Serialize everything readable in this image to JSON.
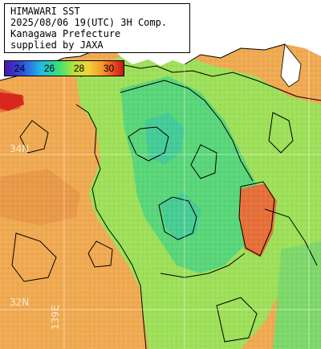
{
  "title": {
    "line1": "HIMAWARI SST",
    "line2": "2025/08/06 19(UTC) 3H Comp.",
    "line3": "Kanagawa Prefecture",
    "line4": "supplied by JAXA"
  },
  "legend": {
    "ticks": [
      "24",
      "26",
      "28",
      "30"
    ],
    "colors": {
      "low": "#4a16a8",
      "cool": "#21b8e6",
      "mid": "#7ee04a",
      "warm": "#f2a83a",
      "high": "#c4181a"
    }
  },
  "grid": {
    "lat_labels": [
      "34N",
      "32N"
    ],
    "lon_labels": [
      "139E"
    ]
  },
  "colors": {
    "land": "#ffffff",
    "sea_warm": "#f0aa52",
    "sea_mid": "#9ee05a",
    "sea_cool": "#5ad67a",
    "sea_hot": "#e6703a",
    "contour": "#000000"
  }
}
